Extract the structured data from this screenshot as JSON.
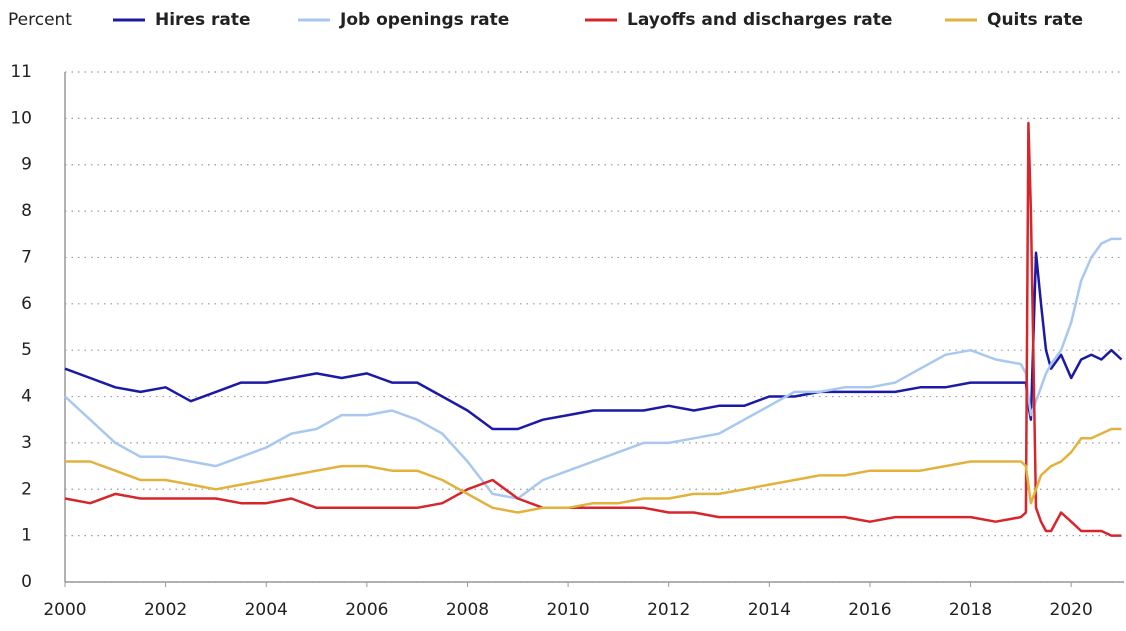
{
  "chart_data": {
    "type": "line",
    "y_label": "Percent",
    "x": [
      2000,
      2000.5,
      2001,
      2001.5,
      2002,
      2002.5,
      2003,
      2003.5,
      2004,
      2004.5,
      2005,
      2005.5,
      2006,
      2006.5,
      2007,
      2007.5,
      2008,
      2008.5,
      2009,
      2009.5,
      2010,
      2010.5,
      2011,
      2011.5,
      2012,
      2012.5,
      2013,
      2013.5,
      2014,
      2014.5,
      2015,
      2015.5,
      2016,
      2016.5,
      2017,
      2017.5,
      2018,
      2018.5,
      2019,
      2019.1,
      2019.15,
      2019.2,
      2019.3,
      2019.4,
      2019.5,
      2019.6,
      2019.8,
      2020,
      2020.2,
      2020.4,
      2020.6,
      2020.8,
      2021
    ],
    "series": [
      {
        "name": "Hires rate",
        "color": "#1a1aa6",
        "values": [
          4.6,
          4.4,
          4.2,
          4.1,
          4.2,
          3.9,
          4.1,
          4.3,
          4.3,
          4.4,
          4.5,
          4.4,
          4.5,
          4.3,
          4.3,
          4.0,
          3.7,
          3.3,
          3.3,
          3.5,
          3.6,
          3.7,
          3.7,
          3.7,
          3.8,
          3.7,
          3.8,
          3.8,
          4.0,
          4.0,
          4.1,
          4.1,
          4.1,
          4.1,
          4.2,
          4.2,
          4.3,
          4.3,
          4.3,
          4.3,
          3.8,
          3.5,
          7.1,
          6.0,
          5.0,
          4.6,
          4.9,
          4.4,
          4.8,
          4.9,
          4.8,
          5.0,
          4.8
        ]
      },
      {
        "name": "Job openings rate",
        "color": "#a8c8f0",
        "values": [
          4.0,
          3.5,
          3.0,
          2.7,
          2.7,
          2.6,
          2.5,
          2.7,
          2.9,
          3.2,
          3.3,
          3.6,
          3.6,
          3.7,
          3.5,
          3.2,
          2.6,
          1.9,
          1.8,
          2.2,
          2.4,
          2.6,
          2.8,
          3.0,
          3.0,
          3.1,
          3.2,
          3.5,
          3.8,
          4.1,
          4.1,
          4.2,
          4.2,
          4.3,
          4.6,
          4.9,
          5.0,
          4.8,
          4.7,
          4.5,
          4.0,
          3.6,
          3.9,
          4.2,
          4.5,
          4.7,
          5.0,
          5.6,
          6.5,
          7.0,
          7.3,
          7.4,
          7.4
        ]
      },
      {
        "name": "Layoffs and discharges rate",
        "color": "#d7262b",
        "values": [
          1.8,
          1.7,
          1.9,
          1.8,
          1.8,
          1.8,
          1.8,
          1.7,
          1.7,
          1.8,
          1.6,
          1.6,
          1.6,
          1.6,
          1.6,
          1.7,
          2.0,
          2.2,
          1.8,
          1.6,
          1.6,
          1.6,
          1.6,
          1.6,
          1.5,
          1.5,
          1.4,
          1.4,
          1.4,
          1.4,
          1.4,
          1.4,
          1.3,
          1.4,
          1.4,
          1.4,
          1.4,
          1.3,
          1.4,
          1.5,
          9.9,
          8.0,
          1.6,
          1.3,
          1.1,
          1.1,
          1.5,
          1.3,
          1.1,
          1.1,
          1.1,
          1.0,
          1.0
        ]
      },
      {
        "name": "Quits rate",
        "color": "#e3b23c",
        "values": [
          2.6,
          2.6,
          2.4,
          2.2,
          2.2,
          2.1,
          2.0,
          2.1,
          2.2,
          2.3,
          2.4,
          2.5,
          2.5,
          2.4,
          2.4,
          2.2,
          1.9,
          1.6,
          1.5,
          1.6,
          1.6,
          1.7,
          1.7,
          1.8,
          1.8,
          1.9,
          1.9,
          2.0,
          2.1,
          2.2,
          2.3,
          2.3,
          2.4,
          2.4,
          2.4,
          2.5,
          2.6,
          2.6,
          2.6,
          2.5,
          2.1,
          1.7,
          2.0,
          2.3,
          2.4,
          2.5,
          2.6,
          2.8,
          3.1,
          3.1,
          3.2,
          3.3,
          3.3
        ]
      }
    ],
    "xlim": [
      2000,
      2021.05
    ],
    "xticks": [
      2000,
      2002,
      2004,
      2006,
      2008,
      2010,
      2012,
      2014,
      2016,
      2018,
      2020
    ],
    "ylim": [
      0,
      11
    ],
    "yticks": [
      0,
      1,
      2,
      3,
      4,
      5,
      6,
      7,
      8,
      9,
      10,
      11
    ],
    "grid": true
  }
}
